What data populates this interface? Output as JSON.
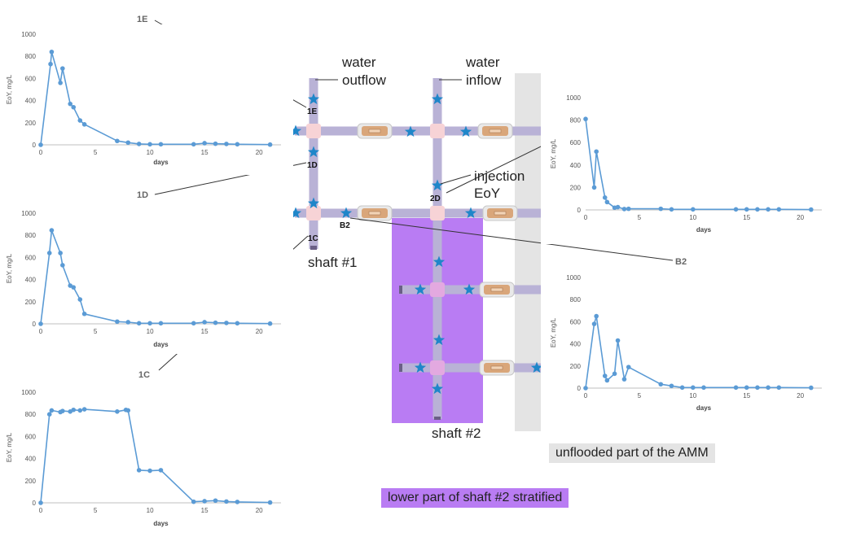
{
  "labels": {
    "water_outflow_1": "water",
    "water_outflow_2": "outflow",
    "water_inflow_1": "water",
    "water_inflow_2": "inflow",
    "injection_1": "injection",
    "injection_2": "EoY",
    "shaft1": "shaft #1",
    "shaft2": "shaft #2",
    "unflooded": "unflooded part of the AMM",
    "stratified": "lower part of shaft #2 stratified"
  },
  "points": {
    "p1E": "1E",
    "p1D": "1D",
    "p1C": "1C",
    "p2D": "2D",
    "pB2": "B2"
  },
  "callouts": {
    "c1E": "1E",
    "c1D": "1D",
    "c1C": "1C",
    "c2D": "2D",
    "cB2": "B2"
  },
  "colors": {
    "series": "#5b9bd5",
    "pipe": "#b9b2d6",
    "node": "#f7d3d6",
    "valve": "#d9a67a",
    "star": "#1f86c9",
    "stratified": "#b97cf3",
    "unflooded": "#e4e4e4"
  },
  "chart_data": [
    {
      "id": "1E",
      "type": "line",
      "xlabel": "days",
      "ylabel": "EoY, mg/L",
      "xlim": [
        0,
        22
      ],
      "ylim": [
        0,
        1000
      ],
      "xticks": [
        0,
        5,
        10,
        15,
        20
      ],
      "yticks": [
        0,
        200,
        400,
        600,
        800,
        1000
      ],
      "x": [
        0,
        0.9,
        1,
        1.8,
        2,
        2.7,
        3,
        3.6,
        4,
        7,
        8,
        9,
        10,
        11,
        14,
        15,
        16,
        17,
        18,
        21
      ],
      "y": [
        0,
        730,
        840,
        560,
        690,
        370,
        340,
        220,
        185,
        35,
        20,
        8,
        5,
        5,
        5,
        15,
        10,
        8,
        5,
        2
      ]
    },
    {
      "id": "1D",
      "type": "line",
      "xlabel": "days",
      "ylabel": "EoY, mg/L",
      "xlim": [
        0,
        22
      ],
      "ylim": [
        0,
        1000
      ],
      "xticks": [
        0,
        5,
        10,
        15,
        20
      ],
      "yticks": [
        0,
        200,
        400,
        600,
        800,
        1000
      ],
      "x": [
        0,
        0.8,
        1,
        1.8,
        2,
        2.7,
        3,
        3.6,
        4,
        7,
        8,
        9,
        10,
        11,
        14,
        15,
        16,
        17,
        18,
        21
      ],
      "y": [
        0,
        640,
        845,
        640,
        530,
        345,
        330,
        220,
        90,
        20,
        15,
        5,
        5,
        5,
        5,
        15,
        10,
        8,
        5,
        2
      ]
    },
    {
      "id": "1C",
      "type": "line",
      "xlabel": "days",
      "ylabel": "EoY, mg/L",
      "xlim": [
        0,
        22
      ],
      "ylim": [
        0,
        1000
      ],
      "xticks": [
        0,
        5,
        10,
        15,
        20
      ],
      "yticks": [
        0,
        200,
        400,
        600,
        800,
        1000
      ],
      "x": [
        0,
        0.8,
        1,
        1.8,
        2,
        2.7,
        3,
        3.6,
        4,
        7,
        7.8,
        8,
        9,
        10,
        11,
        14,
        15,
        16,
        17,
        18,
        21
      ],
      "y": [
        0,
        800,
        835,
        820,
        830,
        825,
        840,
        835,
        845,
        825,
        840,
        835,
        295,
        290,
        295,
        10,
        15,
        20,
        12,
        8,
        3
      ]
    },
    {
      "id": "2D",
      "type": "line",
      "xlabel": "days",
      "ylabel": "EoY, mg/L",
      "xlim": [
        0,
        22
      ],
      "ylim": [
        0,
        1000
      ],
      "xticks": [
        0,
        5,
        10,
        15,
        20
      ],
      "yticks": [
        0,
        200,
        400,
        600,
        800,
        1000
      ],
      "x": [
        0,
        0.8,
        1,
        1.8,
        2,
        2.7,
        3,
        3.6,
        4,
        7,
        8,
        10,
        14,
        15,
        16,
        17,
        18,
        21
      ],
      "y": [
        810,
        200,
        520,
        110,
        70,
        20,
        25,
        8,
        10,
        10,
        5,
        5,
        5,
        5,
        5,
        5,
        5,
        3
      ]
    },
    {
      "id": "B2",
      "type": "line",
      "xlabel": "days",
      "ylabel": "EoY, mg/L",
      "xlim": [
        0,
        22
      ],
      "ylim": [
        0,
        1000
      ],
      "xticks": [
        0,
        5,
        10,
        15,
        20
      ],
      "yticks": [
        0,
        200,
        400,
        600,
        800,
        1000
      ],
      "x": [
        0,
        0.8,
        1,
        1.8,
        2,
        2.7,
        3,
        3.6,
        4,
        7,
        8,
        9,
        10,
        11,
        14,
        15,
        16,
        17,
        18,
        21
      ],
      "y": [
        0,
        580,
        650,
        110,
        70,
        130,
        430,
        80,
        190,
        35,
        20,
        5,
        5,
        5,
        5,
        5,
        5,
        5,
        5,
        3
      ]
    }
  ]
}
